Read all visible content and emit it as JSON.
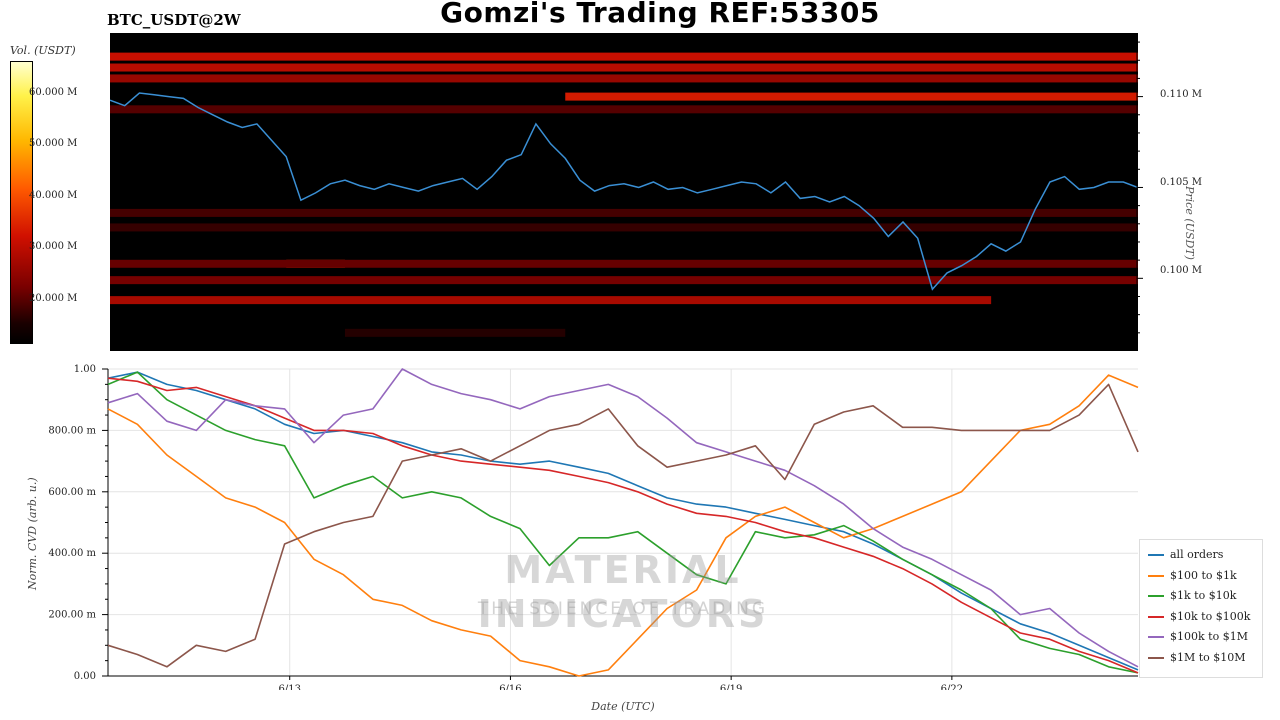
{
  "header": {
    "title": "Gomzi's Trading REF:53305",
    "symbol": "BTC_USDT@2W"
  },
  "colorbar": {
    "label": "Vol. (USDT)",
    "ticks": [
      "60.000 M",
      "50.000 M",
      "40.000 M",
      "30.000 M",
      "20.000 M"
    ]
  },
  "price_axis": {
    "label": "Price (USDT)",
    "ticks": [
      "0.110 M",
      "0.105 M",
      "0.100 M"
    ]
  },
  "watermark": {
    "main": "MATERIAL INDICATORS",
    "sub": "THE SCIENCE OF TRADING"
  },
  "colors": {
    "all_orders": "#1f77b4",
    "r100_1k": "#ff7f0e",
    "r1k_10k": "#2ca02c",
    "r10k_100k": "#d62728",
    "r100k_1m": "#9467bd",
    "r1m_10m": "#8c564b",
    "price_line": "#3a8fd4"
  },
  "chart_data": [
    {
      "type": "heatmap",
      "title": "Gomzi's Trading REF:53305",
      "xlabel": "",
      "ylabel": "Price (USDT)",
      "colorbar_label": "Vol. (USDT)",
      "colorbar_range": [
        10000000,
        65000000
      ],
      "ylim": [
        96000,
        113500
      ],
      "yticks": [
        100000,
        105000,
        110000
      ],
      "liquidity_bands": [
        {
          "price": 112200,
          "start_day": 0,
          "end_day": 14,
          "volume": 32000000
        },
        {
          "price": 111600,
          "start_day": 0,
          "end_day": 14,
          "volume": 30000000
        },
        {
          "price": 111000,
          "start_day": 0,
          "end_day": 14,
          "volume": 26000000
        },
        {
          "price": 110000,
          "start_day": 6.2,
          "end_day": 14,
          "volume": 34000000
        },
        {
          "price": 109300,
          "start_day": 0,
          "end_day": 14,
          "volume": 18000000
        },
        {
          "price": 103600,
          "start_day": 0,
          "end_day": 14,
          "volume": 16000000
        },
        {
          "price": 102800,
          "start_day": 0,
          "end_day": 14,
          "volume": 14000000
        },
        {
          "price": 100800,
          "start_day": 2.4,
          "end_day": 3.2,
          "volume": 38000000
        },
        {
          "price": 100800,
          "start_day": 0,
          "end_day": 14,
          "volume": 20000000
        },
        {
          "price": 99900,
          "start_day": 0,
          "end_day": 14,
          "volume": 22000000
        },
        {
          "price": 98800,
          "start_day": 0,
          "end_day": 12,
          "volume": 28000000
        },
        {
          "price": 97000,
          "start_day": 3.2,
          "end_day": 6.2,
          "volume": 12000000
        }
      ],
      "price_series": {
        "name": "",
        "x_days": [
          0,
          0.2,
          0.4,
          0.6,
          0.8,
          1.0,
          1.2,
          1.4,
          1.6,
          1.8,
          2.0,
          2.2,
          2.4,
          2.6,
          2.8,
          3.0,
          3.2,
          3.4,
          3.6,
          3.8,
          4.0,
          4.2,
          4.4,
          4.6,
          4.8,
          5.0,
          5.2,
          5.4,
          5.6,
          5.8,
          6.0,
          6.2,
          6.4,
          6.6,
          6.8,
          7.0,
          7.2,
          7.4,
          7.6,
          7.8,
          8.0,
          8.2,
          8.4,
          8.6,
          8.8,
          9.0,
          9.2,
          9.4,
          9.6,
          9.8,
          10.0,
          10.2,
          10.4,
          10.6,
          10.8,
          11.0,
          11.2,
          11.4,
          11.6,
          11.8,
          12.0,
          12.2,
          12.4,
          12.6,
          12.8,
          13.0,
          13.2,
          13.4,
          13.6,
          13.8,
          14.0
        ],
        "price": [
          109800,
          109500,
          110200,
          110100,
          110000,
          109900,
          109400,
          109000,
          108600,
          108300,
          108500,
          107600,
          106700,
          104300,
          104700,
          105200,
          105400,
          105100,
          104900,
          105200,
          105000,
          104800,
          105100,
          105300,
          105500,
          104900,
          105600,
          106500,
          106800,
          108500,
          107400,
          106600,
          105400,
          104800,
          105100,
          105200,
          105000,
          105300,
          104900,
          105000,
          104700,
          104900,
          105100,
          105300,
          105200,
          104700,
          105300,
          104400,
          104500,
          104200,
          104500,
          104000,
          103300,
          102300,
          103100,
          102200,
          99400,
          100300,
          100700,
          101200,
          101900,
          101500,
          102000,
          103800,
          105300,
          105600,
          104900,
          105000,
          105300,
          105300,
          105000
        ]
      }
    },
    {
      "type": "line",
      "title": "",
      "xlabel": "Date (UTC)",
      "ylabel": "Norm. CVD (arb. u.)",
      "x_ticks": [
        "6/13",
        "6/16",
        "6/19",
        "6/22"
      ],
      "x_tick_days": [
        2.47,
        5.47,
        8.47,
        11.47
      ],
      "xlim": [
        0,
        14
      ],
      "ylim": [
        0,
        1.0
      ],
      "y_ticks": [
        "0.00",
        "200.00 m",
        "400.00 m",
        "600.00 m",
        "800.00 m",
        "1.00"
      ],
      "y_tick_values": [
        0,
        0.2,
        0.4,
        0.6,
        0.8,
        1.0
      ],
      "grid": true,
      "legend_position": "bottom-right",
      "x": [
        0,
        0.4,
        0.8,
        1.2,
        1.6,
        2.0,
        2.4,
        2.8,
        3.2,
        3.6,
        4.0,
        4.4,
        4.8,
        5.2,
        5.6,
        6.0,
        6.4,
        6.8,
        7.2,
        7.6,
        8.0,
        8.4,
        8.8,
        9.2,
        9.6,
        10.0,
        10.4,
        10.8,
        11.2,
        11.6,
        12.0,
        12.4,
        12.8,
        13.2,
        13.6,
        14.0
      ],
      "series": [
        {
          "name": "all orders",
          "color_key": "all_orders",
          "values": [
            0.97,
            0.99,
            0.95,
            0.93,
            0.9,
            0.87,
            0.82,
            0.79,
            0.8,
            0.78,
            0.76,
            0.73,
            0.72,
            0.7,
            0.69,
            0.7,
            0.68,
            0.66,
            0.62,
            0.58,
            0.56,
            0.55,
            0.53,
            0.51,
            0.49,
            0.47,
            0.43,
            0.38,
            0.33,
            0.27,
            0.22,
            0.17,
            0.14,
            0.1,
            0.06,
            0.02
          ]
        },
        {
          "name": "$100 to $1k",
          "color_key": "r100_1k",
          "values": [
            0.87,
            0.82,
            0.72,
            0.65,
            0.58,
            0.55,
            0.5,
            0.38,
            0.33,
            0.25,
            0.23,
            0.18,
            0.15,
            0.13,
            0.05,
            0.03,
            0.0,
            0.02,
            0.12,
            0.22,
            0.28,
            0.45,
            0.52,
            0.55,
            0.5,
            0.45,
            0.48,
            0.52,
            0.56,
            0.6,
            0.7,
            0.8,
            0.82,
            0.88,
            0.98,
            0.94
          ]
        },
        {
          "name": "$1k to $10k",
          "color_key": "r1k_10k",
          "values": [
            0.95,
            0.99,
            0.9,
            0.85,
            0.8,
            0.77,
            0.75,
            0.58,
            0.62,
            0.65,
            0.58,
            0.6,
            0.58,
            0.52,
            0.48,
            0.36,
            0.45,
            0.45,
            0.47,
            0.4,
            0.33,
            0.3,
            0.47,
            0.45,
            0.46,
            0.49,
            0.44,
            0.38,
            0.33,
            0.28,
            0.22,
            0.12,
            0.09,
            0.07,
            0.03,
            0.01
          ]
        },
        {
          "name": "$10k to $100k",
          "color_key": "r10k_100k",
          "values": [
            0.97,
            0.96,
            0.93,
            0.94,
            0.91,
            0.88,
            0.84,
            0.8,
            0.8,
            0.79,
            0.75,
            0.72,
            0.7,
            0.69,
            0.68,
            0.67,
            0.65,
            0.63,
            0.6,
            0.56,
            0.53,
            0.52,
            0.5,
            0.47,
            0.45,
            0.42,
            0.39,
            0.35,
            0.3,
            0.24,
            0.19,
            0.14,
            0.12,
            0.08,
            0.05,
            0.01
          ]
        },
        {
          "name": "$100k to $1M",
          "color_key": "r100k_1m",
          "values": [
            0.89,
            0.92,
            0.83,
            0.8,
            0.9,
            0.88,
            0.87,
            0.76,
            0.85,
            0.87,
            1.0,
            0.95,
            0.92,
            0.9,
            0.87,
            0.91,
            0.93,
            0.95,
            0.91,
            0.84,
            0.76,
            0.73,
            0.7,
            0.67,
            0.62,
            0.56,
            0.48,
            0.42,
            0.38,
            0.33,
            0.28,
            0.2,
            0.22,
            0.14,
            0.08,
            0.03
          ]
        },
        {
          "name": "$1M to $10M",
          "color_key": "r1m_10m",
          "values": [
            0.1,
            0.07,
            0.03,
            0.1,
            0.08,
            0.12,
            0.43,
            0.47,
            0.5,
            0.52,
            0.7,
            0.72,
            0.74,
            0.7,
            0.75,
            0.8,
            0.82,
            0.87,
            0.75,
            0.68,
            0.7,
            0.72,
            0.75,
            0.64,
            0.82,
            0.86,
            0.88,
            0.81,
            0.81,
            0.8,
            0.8,
            0.8,
            0.8,
            0.85,
            0.95,
            0.73
          ]
        }
      ]
    }
  ]
}
